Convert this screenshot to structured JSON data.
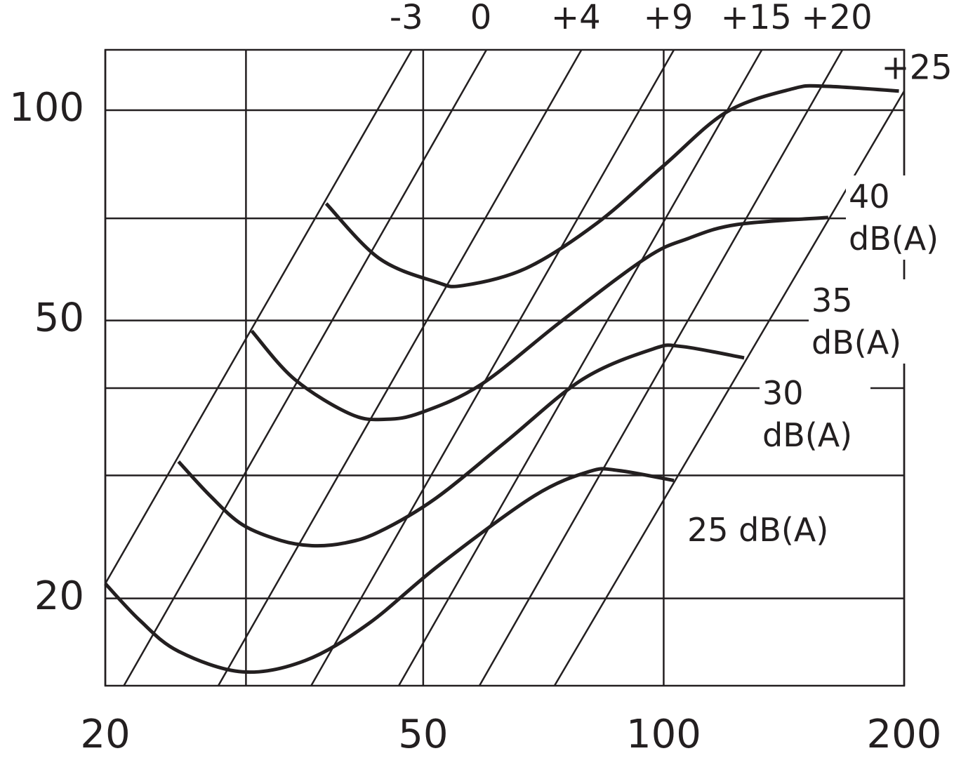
{
  "chart_data": {
    "type": "line",
    "xscale": "log",
    "yscale": "log",
    "xlim": [
      20,
      200
    ],
    "ylim": [
      15,
      122
    ],
    "xticks": [
      20,
      50,
      100,
      200
    ],
    "yticks": [
      20,
      50,
      100
    ],
    "xgrid": [
      20,
      30,
      50,
      100,
      200
    ],
    "ygrid": [
      20,
      30,
      40,
      50,
      70,
      100
    ],
    "series": [
      {
        "name": "40 dB(A)",
        "color": "#231f20",
        "x": [
          37.8,
          44.0,
          51.8,
          56.1,
          67.3,
          82.5,
          100,
          119.9,
          145,
          159,
          197
        ],
        "values": [
          73.5,
          61.4,
          56.8,
          56.1,
          59.4,
          68.9,
          83.3,
          99.4,
          107.3,
          108.2,
          106.5
        ]
      },
      {
        "name": "35 dB(A)",
        "color": "#231f20",
        "x": [
          30.5,
          34.5,
          40.6,
          44.9,
          49.7,
          59.1,
          74.5,
          95.0,
          107.3,
          123.6,
          160.7
        ],
        "values": [
          48.3,
          41.2,
          36.7,
          36.1,
          36.9,
          40.5,
          49.9,
          61.4,
          65.5,
          68.6,
          70.2
        ]
      },
      {
        "name": "30 dB(A)",
        "color": "#231f20",
        "x": [
          24.7,
          27.1,
          29.7,
          33.2,
          36.3,
          39.8,
          44.0,
          51.8,
          63.4,
          79.2,
          96.9,
          105.1,
          126.1
        ],
        "values": [
          31.4,
          28.0,
          25.5,
          24.2,
          23.8,
          24.0,
          24.9,
          27.8,
          33.5,
          41.2,
          45.5,
          45.9,
          44.2
        ]
      },
      {
        "name": "25 dB(A)",
        "color": "#231f20",
        "x": [
          20,
          22.1,
          24.7,
          29.7,
          35.6,
          42.7,
          52.3,
          68.7,
          80.8,
          87.6,
          103.0
        ],
        "values": [
          21.0,
          18.6,
          16.8,
          15.7,
          16.3,
          18.4,
          22.3,
          28.0,
          30.4,
          30.5,
          29.5
        ]
      }
    ],
    "reference_lines": [
      {
        "name": "-3",
        "x": [
          20,
          48.4
        ],
        "values": [
          21.0,
          122
        ]
      },
      {
        "name": "0",
        "x": [
          21.1,
          60
        ],
        "values": [
          15,
          122
        ]
      },
      {
        "name": "+4",
        "x": [
          27.7,
          78.9
        ],
        "values": [
          15,
          122
        ]
      },
      {
        "name": "+9",
        "x": [
          36.2,
          103
        ],
        "values": [
          15,
          122
        ]
      },
      {
        "name": "+15",
        "x": [
          46.6,
          132.7
        ],
        "values": [
          15,
          122
        ]
      },
      {
        "name": "+20",
        "x": [
          58.8,
          167.4
        ],
        "values": [
          15,
          122
        ]
      },
      {
        "name": "+25",
        "x": [
          73.0,
          200
        ],
        "values": [
          15,
          106.5
        ]
      }
    ]
  }
}
